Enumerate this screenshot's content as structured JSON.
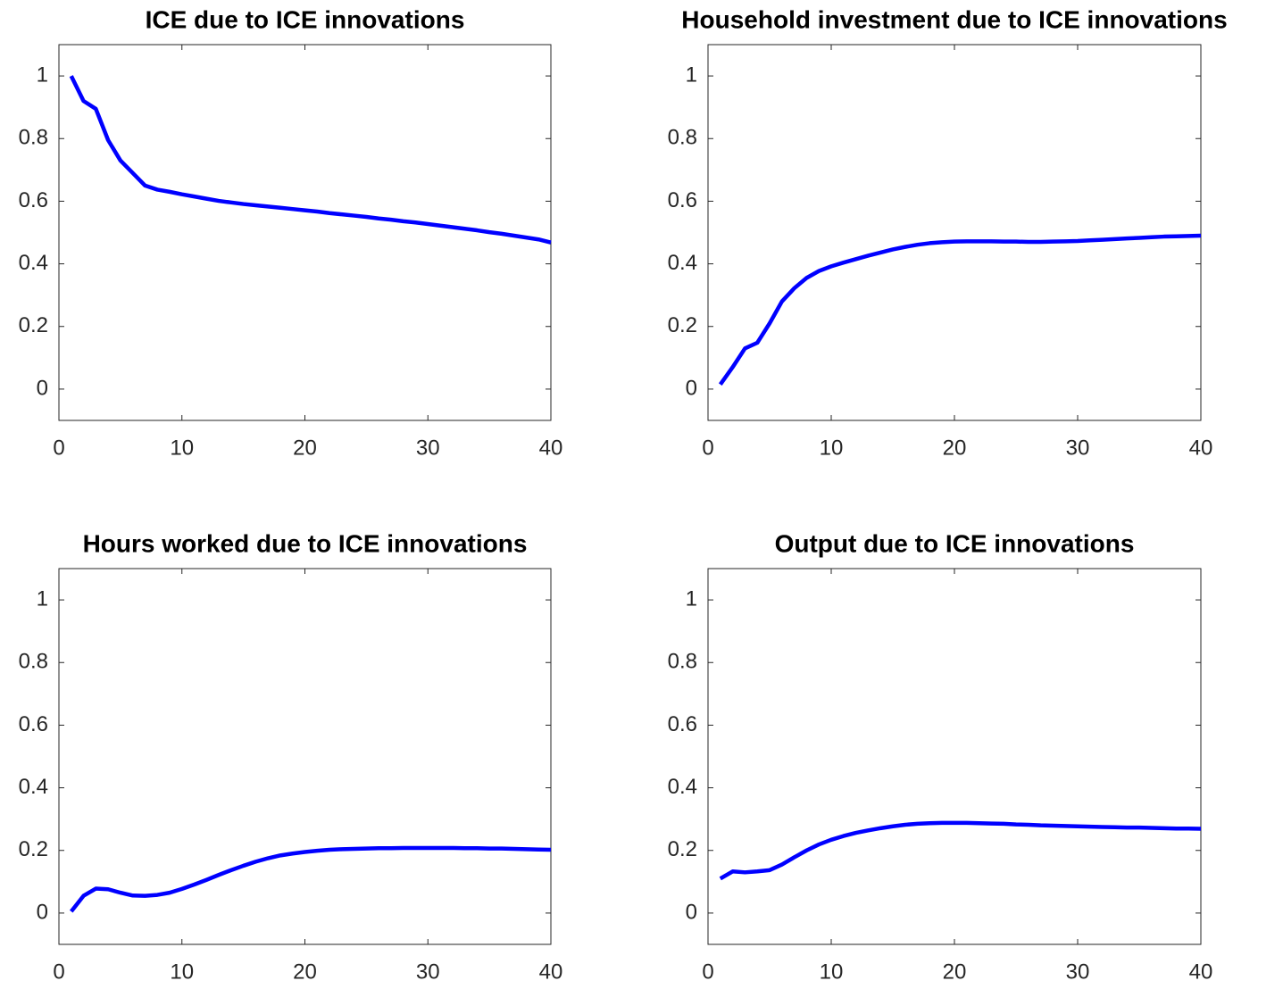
{
  "chart_data": [
    {
      "type": "line",
      "title": "ICE due to ICE innovations",
      "x": [
        1,
        2,
        3,
        4,
        5,
        6,
        7,
        8,
        9,
        10,
        11,
        12,
        13,
        14,
        15,
        16,
        17,
        18,
        19,
        20,
        21,
        22,
        23,
        24,
        25,
        26,
        27,
        28,
        29,
        30,
        31,
        32,
        33,
        34,
        35,
        36,
        37,
        38,
        39,
        40
      ],
      "values": [
        1.0,
        0.92,
        0.895,
        0.795,
        0.73,
        0.69,
        0.65,
        0.637,
        0.63,
        0.622,
        0.615,
        0.608,
        0.601,
        0.596,
        0.591,
        0.587,
        0.583,
        0.579,
        0.575,
        0.571,
        0.567,
        0.562,
        0.558,
        0.554,
        0.55,
        0.545,
        0.541,
        0.536,
        0.532,
        0.527,
        0.522,
        0.517,
        0.512,
        0.507,
        0.501,
        0.496,
        0.49,
        0.484,
        0.478,
        0.468
      ],
      "color": "#0000ff",
      "xlim": [
        0,
        40
      ],
      "xticks": [
        0,
        10,
        20,
        30,
        40
      ],
      "ylim": [
        -0.1,
        1.1
      ],
      "yticks": [
        0,
        0.2,
        0.4,
        0.6,
        0.8,
        1
      ]
    },
    {
      "type": "line",
      "title": "Household investment due to ICE innovations",
      "x": [
        1,
        2,
        3,
        4,
        5,
        6,
        7,
        8,
        9,
        10,
        11,
        12,
        13,
        14,
        15,
        16,
        17,
        18,
        19,
        20,
        21,
        22,
        23,
        24,
        25,
        26,
        27,
        28,
        29,
        30,
        31,
        32,
        33,
        34,
        35,
        36,
        37,
        38,
        39,
        40
      ],
      "values": [
        0.015,
        0.07,
        0.13,
        0.148,
        0.21,
        0.28,
        0.322,
        0.355,
        0.377,
        0.392,
        0.404,
        0.415,
        0.426,
        0.436,
        0.446,
        0.454,
        0.461,
        0.466,
        0.469,
        0.471,
        0.472,
        0.472,
        0.472,
        0.471,
        0.471,
        0.47,
        0.47,
        0.471,
        0.472,
        0.473,
        0.475,
        0.477,
        0.479,
        0.481,
        0.483,
        0.485,
        0.487,
        0.488,
        0.489,
        0.49
      ],
      "color": "#0000ff",
      "xlim": [
        0,
        40
      ],
      "xticks": [
        0,
        10,
        20,
        30,
        40
      ],
      "ylim": [
        -0.1,
        1.1
      ],
      "yticks": [
        0,
        0.2,
        0.4,
        0.6,
        0.8,
        1
      ]
    },
    {
      "type": "line",
      "title": "Hours worked due to ICE innovations",
      "x": [
        1,
        2,
        3,
        4,
        5,
        6,
        7,
        8,
        9,
        10,
        11,
        12,
        13,
        14,
        15,
        16,
        17,
        18,
        19,
        20,
        21,
        22,
        23,
        24,
        25,
        26,
        27,
        28,
        29,
        30,
        31,
        32,
        33,
        34,
        35,
        36,
        37,
        38,
        39,
        40
      ],
      "values": [
        0.005,
        0.055,
        0.078,
        0.076,
        0.065,
        0.056,
        0.055,
        0.058,
        0.065,
        0.077,
        0.091,
        0.106,
        0.122,
        0.137,
        0.151,
        0.164,
        0.175,
        0.184,
        0.19,
        0.195,
        0.199,
        0.202,
        0.204,
        0.205,
        0.206,
        0.207,
        0.207,
        0.208,
        0.208,
        0.208,
        0.208,
        0.208,
        0.207,
        0.207,
        0.206,
        0.206,
        0.205,
        0.204,
        0.203,
        0.202
      ],
      "color": "#0000ff",
      "xlim": [
        0,
        40
      ],
      "xticks": [
        0,
        10,
        20,
        30,
        40
      ],
      "ylim": [
        -0.1,
        1.1
      ],
      "yticks": [
        0,
        0.2,
        0.4,
        0.6,
        0.8,
        1
      ]
    },
    {
      "type": "line",
      "title": "Output due to ICE innovations",
      "x": [
        1,
        2,
        3,
        4,
        5,
        6,
        7,
        8,
        9,
        10,
        11,
        12,
        13,
        14,
        15,
        16,
        17,
        18,
        19,
        20,
        21,
        22,
        23,
        24,
        25,
        26,
        27,
        28,
        29,
        30,
        31,
        32,
        33,
        34,
        35,
        36,
        37,
        38,
        39,
        40
      ],
      "values": [
        0.11,
        0.133,
        0.13,
        0.133,
        0.137,
        0.155,
        0.178,
        0.2,
        0.219,
        0.234,
        0.246,
        0.256,
        0.264,
        0.271,
        0.277,
        0.282,
        0.285,
        0.287,
        0.288,
        0.288,
        0.288,
        0.287,
        0.286,
        0.285,
        0.283,
        0.282,
        0.28,
        0.279,
        0.278,
        0.277,
        0.276,
        0.275,
        0.274,
        0.273,
        0.273,
        0.272,
        0.271,
        0.27,
        0.27,
        0.269
      ],
      "color": "#0000ff",
      "xlim": [
        0,
        40
      ],
      "xticks": [
        0,
        10,
        20,
        30,
        40
      ],
      "ylim": [
        -0.1,
        1.1
      ],
      "yticks": [
        0,
        0.2,
        0.4,
        0.6,
        0.8,
        1
      ]
    }
  ]
}
